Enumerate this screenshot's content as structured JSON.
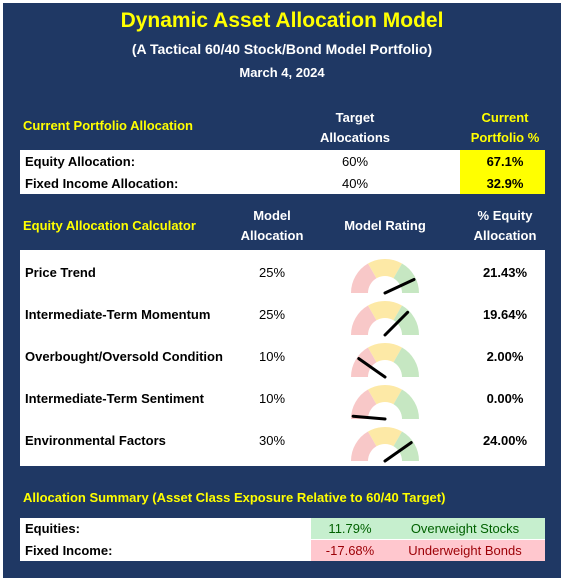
{
  "header": {
    "title": "Dynamic Asset Allocation Model",
    "subtitle": "(A Tactical 60/40 Stock/Bond Model Portfolio)",
    "date": "March 4, 2024"
  },
  "current_allocation": {
    "title": "Current Portfolio Allocation",
    "columns": [
      "Target Allocations",
      "Current Portfolio %"
    ],
    "rows": [
      [
        "Equity Allocation:",
        "60%",
        "67.1%"
      ],
      [
        "Fixed Income Allocation:",
        "40%",
        "32.9%"
      ]
    ]
  },
  "calculator": {
    "title": "Equity Allocation Calculator",
    "columns": [
      "Model Allocation",
      "Model Rating",
      "% Equity Allocation"
    ],
    "rows": [
      [
        "Price Trend",
        "25%",
        "21.43%"
      ],
      [
        "Intermediate-Term Momentum",
        "25%",
        "19.64%"
      ],
      [
        "Overbought/Oversold Condition",
        "10%",
        "2.00%"
      ],
      [
        "Intermediate-Term Sentiment",
        "10%",
        "0.00%"
      ],
      [
        "Environmental Factors",
        "30%",
        "24.00%"
      ]
    ]
  },
  "summary": {
    "title": "Allocation Summary (Asset Class Exposure Relative to 60/40 Target)",
    "rows": [
      [
        "Equities:",
        "11.79%",
        "Overweight Stocks"
      ],
      [
        "Fixed Income:",
        "-17.68%",
        "Underweight Bonds"
      ]
    ]
  }
}
